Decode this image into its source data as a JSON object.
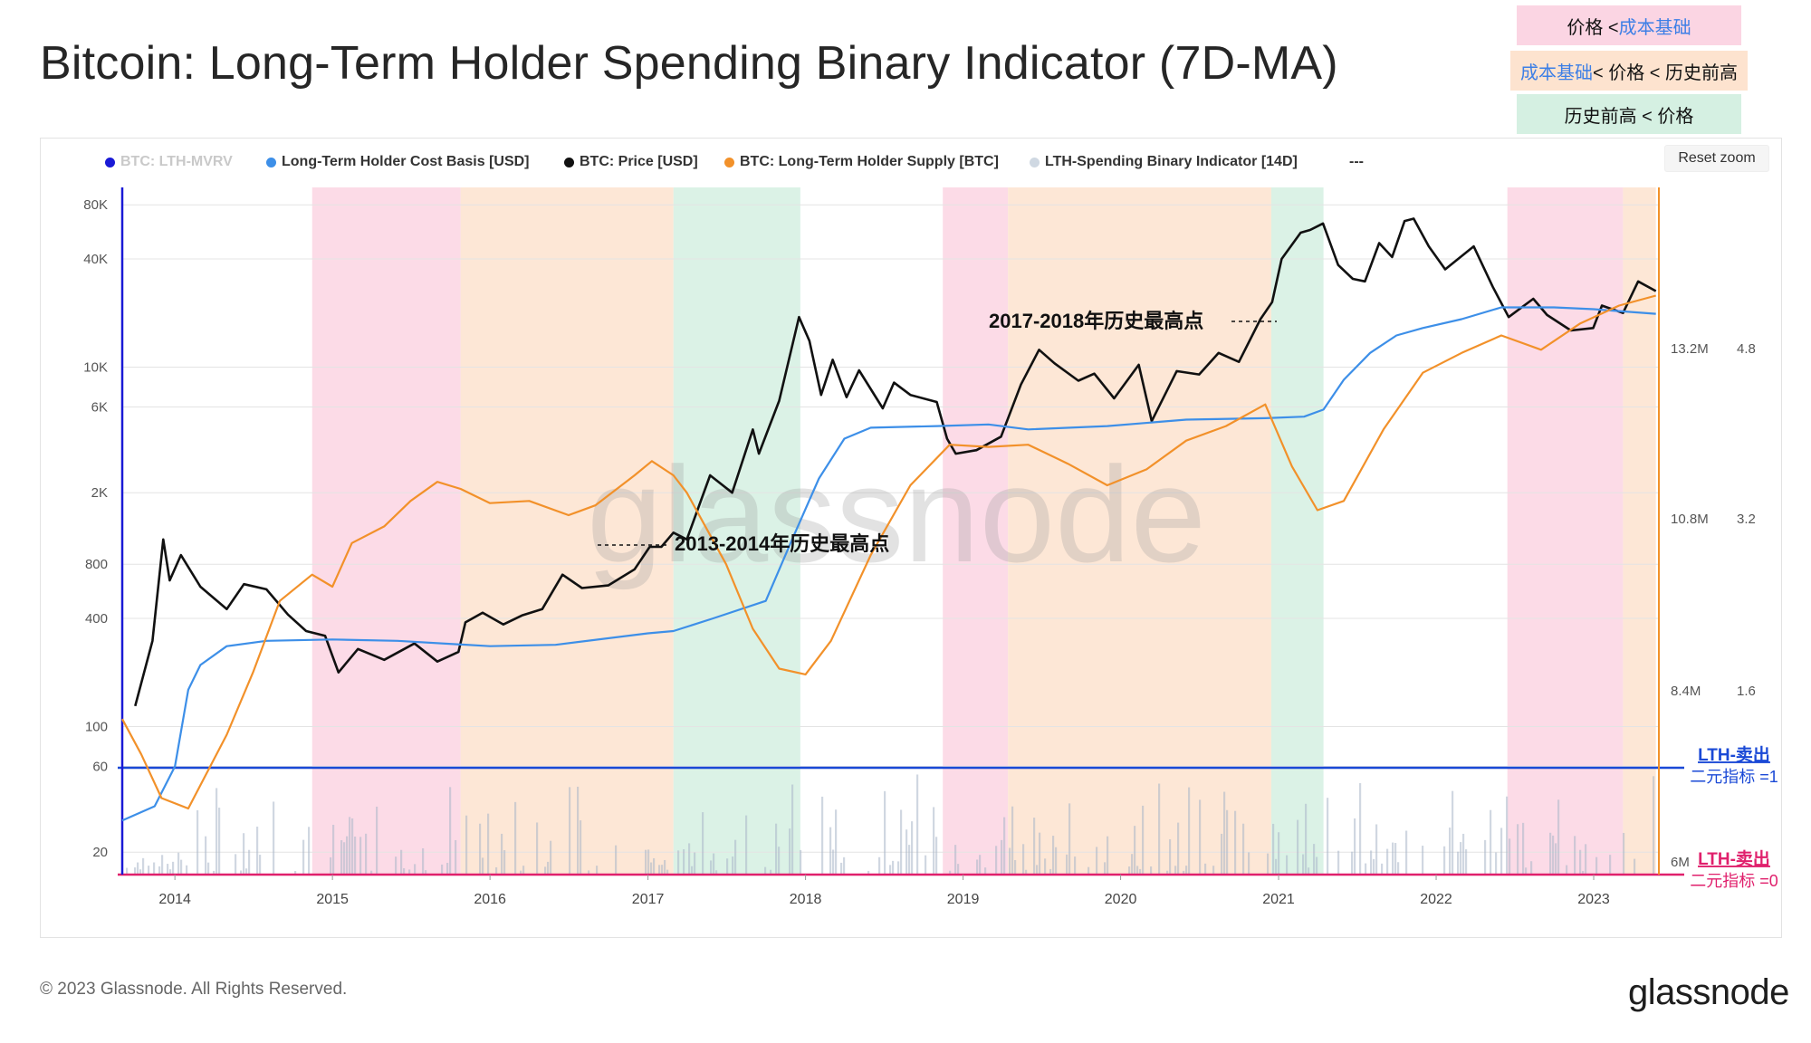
{
  "title": "Bitcoin: Long-Term Holder Spending Binary Indicator (7D-MA)",
  "key": {
    "row1": {
      "left": "价格 < ",
      "right": "成本基础"
    },
    "row2": {
      "left": "成本基础",
      "right": " < 价格 < 历史前高"
    },
    "row3": {
      "text": "历史前高 < 价格"
    }
  },
  "legend": [
    {
      "label": "BTC: LTH-MVRV",
      "color": "#1a1ad6",
      "dim": true
    },
    {
      "label": "Long-Term Holder Cost Basis [USD]",
      "color": "#3d8fe8",
      "dim": false
    },
    {
      "label": "BTC: Price [USD]",
      "color": "#111111",
      "dim": false
    },
    {
      "label": "BTC: Long-Term Holder Supply [BTC]",
      "color": "#f2912a",
      "dim": false
    },
    {
      "label": "LTH-Spending Binary Indicator [14D]",
      "color": "#cfd8e2",
      "dim": false
    },
    {
      "label": "---",
      "color": "",
      "dim": false
    }
  ],
  "reset_zoom": "Reset zoom",
  "footer": "© 2023 Glassnode. All Rights Reserved.",
  "brand": "glassnode",
  "watermark": "glassnode",
  "chart_data": {
    "type": "line",
    "x_range": [
      "2013-09-01",
      "2023-06-01"
    ],
    "x_ticks": [
      "2014",
      "2015",
      "2016",
      "2017",
      "2018",
      "2019",
      "2020",
      "2021",
      "2022",
      "2023"
    ],
    "y_left": {
      "scale": "log",
      "range": [
        15,
        100000
      ],
      "ticks": [
        "80K",
        "40K",
        "10K",
        "6K",
        "2K",
        "800",
        "400",
        "100",
        "60",
        "20"
      ],
      "unit": "USD"
    },
    "y_right_supply": {
      "ticks": [
        "13.2M",
        "10.8M",
        "8.4M",
        "6M"
      ],
      "unit": "BTC"
    },
    "y_right_mvrv": {
      "ticks": [
        "4.8",
        "3.2",
        "1.6"
      ]
    },
    "regions": [
      {
        "from": "2014-11-15",
        "to": "2015-10-25",
        "state": "价格 < 成本基础",
        "color": "#fbd5e3"
      },
      {
        "from": "2015-10-25",
        "to": "2017-03-01",
        "state": "成本基础 < 价格 < 历史前高",
        "color": "#fde3cf"
      },
      {
        "from": "2017-03-01",
        "to": "2017-12-20",
        "state": "历史前高 < 价格",
        "color": "#d5f0e2"
      },
      {
        "from": "2018-11-15",
        "to": "2019-04-15",
        "state": "价格 < 成本基础",
        "color": "#fbd5e3"
      },
      {
        "from": "2019-04-15",
        "to": "2020-12-15",
        "state": "成本基础 < 价格 < 历史前高",
        "color": "#fde3cf"
      },
      {
        "from": "2020-12-15",
        "to": "2021-04-15",
        "state": "历史前高 < 价格",
        "color": "#d5f0e2"
      },
      {
        "from": "2022-06-15",
        "to": "2023-03-10",
        "state": "价格 < 成本基础",
        "color": "#fbd5e3"
      },
      {
        "from": "2023-03-10",
        "to": "2023-05-25",
        "state": "成本基础 < 价格 < 历史前高",
        "color": "#fde3cf"
      }
    ],
    "series": [
      {
        "name": "BTC: Price [USD]",
        "color": "#111111",
        "points": [
          [
            "2013-10-01",
            130
          ],
          [
            "2013-11-10",
            300
          ],
          [
            "2013-12-05",
            1100
          ],
          [
            "2013-12-20",
            650
          ],
          [
            "2014-01-15",
            900
          ],
          [
            "2014-03-01",
            600
          ],
          [
            "2014-05-01",
            450
          ],
          [
            "2014-06-10",
            620
          ],
          [
            "2014-08-01",
            580
          ],
          [
            "2014-09-20",
            420
          ],
          [
            "2014-11-01",
            340
          ],
          [
            "2014-12-15",
            320
          ],
          [
            "2015-01-15",
            200
          ],
          [
            "2015-03-01",
            270
          ],
          [
            "2015-05-01",
            235
          ],
          [
            "2015-07-10",
            290
          ],
          [
            "2015-09-01",
            230
          ],
          [
            "2015-10-20",
            260
          ],
          [
            "2015-11-05",
            380
          ],
          [
            "2015-12-15",
            430
          ],
          [
            "2016-02-01",
            370
          ],
          [
            "2016-03-15",
            415
          ],
          [
            "2016-05-01",
            450
          ],
          [
            "2016-06-17",
            700
          ],
          [
            "2016-08-01",
            590
          ],
          [
            "2016-10-01",
            610
          ],
          [
            "2016-12-01",
            750
          ],
          [
            "2017-01-05",
            1000
          ],
          [
            "2017-02-01",
            1000
          ],
          [
            "2017-03-01",
            1200
          ],
          [
            "2017-04-01",
            1100
          ],
          [
            "2017-05-25",
            2500
          ],
          [
            "2017-07-15",
            2000
          ],
          [
            "2017-09-01",
            4500
          ],
          [
            "2017-09-15",
            3300
          ],
          [
            "2017-11-01",
            6500
          ],
          [
            "2017-12-17",
            19000
          ],
          [
            "2018-01-10",
            14000
          ],
          [
            "2018-02-06",
            7000
          ],
          [
            "2018-03-05",
            11000
          ],
          [
            "2018-04-06",
            6800
          ],
          [
            "2018-05-05",
            9600
          ],
          [
            "2018-06-29",
            5900
          ],
          [
            "2018-07-25",
            8200
          ],
          [
            "2018-09-01",
            7000
          ],
          [
            "2018-11-01",
            6400
          ],
          [
            "2018-11-25",
            4000
          ],
          [
            "2018-12-15",
            3300
          ],
          [
            "2019-02-01",
            3450
          ],
          [
            "2019-03-30",
            4100
          ],
          [
            "2019-05-15",
            8000
          ],
          [
            "2019-06-26",
            12500
          ],
          [
            "2019-08-01",
            10500
          ],
          [
            "2019-09-25",
            8400
          ],
          [
            "2019-11-01",
            9200
          ],
          [
            "2019-12-17",
            6700
          ],
          [
            "2020-02-12",
            10300
          ],
          [
            "2020-03-13",
            5000
          ],
          [
            "2020-05-10",
            9500
          ],
          [
            "2020-07-01",
            9100
          ],
          [
            "2020-08-15",
            12000
          ],
          [
            "2020-10-01",
            10700
          ],
          [
            "2020-11-20",
            18500
          ],
          [
            "2020-12-17",
            23000
          ],
          [
            "2021-01-08",
            40000
          ],
          [
            "2021-02-21",
            56000
          ],
          [
            "2021-03-15",
            58000
          ],
          [
            "2021-04-14",
            63000
          ],
          [
            "2021-05-19",
            37000
          ],
          [
            "2021-06-22",
            31000
          ],
          [
            "2021-07-20",
            30000
          ],
          [
            "2021-08-22",
            49000
          ],
          [
            "2021-09-21",
            41000
          ],
          [
            "2021-10-20",
            65000
          ],
          [
            "2021-11-10",
            67000
          ],
          [
            "2021-12-15",
            47000
          ],
          [
            "2022-01-22",
            35000
          ],
          [
            "2022-03-29",
            47000
          ],
          [
            "2022-05-12",
            28000
          ],
          [
            "2022-06-18",
            19000
          ],
          [
            "2022-08-14",
            24000
          ],
          [
            "2022-09-15",
            19500
          ],
          [
            "2022-11-09",
            16000
          ],
          [
            "2022-12-31",
            16500
          ],
          [
            "2023-01-20",
            22000
          ],
          [
            "2023-03-10",
            20000
          ],
          [
            "2023-04-14",
            30000
          ],
          [
            "2023-05-25",
            26500
          ]
        ]
      },
      {
        "name": "Long-Term Holder Cost Basis [USD]",
        "color": "#3d8fe8",
        "points": [
          [
            "2013-09-01",
            30
          ],
          [
            "2013-11-15",
            36
          ],
          [
            "2014-01-01",
            60
          ],
          [
            "2014-02-01",
            160
          ],
          [
            "2014-03-01",
            220
          ],
          [
            "2014-05-01",
            280
          ],
          [
            "2014-08-01",
            300
          ],
          [
            "2015-01-01",
            305
          ],
          [
            "2015-06-01",
            300
          ],
          [
            "2016-01-01",
            280
          ],
          [
            "2016-06-01",
            285
          ],
          [
            "2017-01-01",
            330
          ],
          [
            "2017-03-01",
            340
          ],
          [
            "2017-06-01",
            400
          ],
          [
            "2017-10-01",
            500
          ],
          [
            "2017-12-01",
            1100
          ],
          [
            "2018-02-01",
            2400
          ],
          [
            "2018-04-01",
            4000
          ],
          [
            "2018-06-01",
            4600
          ],
          [
            "2018-11-01",
            4700
          ],
          [
            "2019-03-01",
            4800
          ],
          [
            "2019-06-01",
            4500
          ],
          [
            "2019-12-01",
            4700
          ],
          [
            "2020-06-01",
            5100
          ],
          [
            "2020-12-01",
            5200
          ],
          [
            "2021-03-01",
            5300
          ],
          [
            "2021-04-15",
            5800
          ],
          [
            "2021-06-01",
            8500
          ],
          [
            "2021-08-01",
            12000
          ],
          [
            "2021-10-01",
            15000
          ],
          [
            "2021-12-01",
            16500
          ],
          [
            "2022-03-01",
            18500
          ],
          [
            "2022-06-01",
            21500
          ],
          [
            "2022-10-01",
            21500
          ],
          [
            "2023-01-01",
            21000
          ],
          [
            "2023-03-01",
            20500
          ],
          [
            "2023-05-25",
            19800
          ]
        ]
      },
      {
        "name": "BTC: Long-Term Holder Supply [BTC]",
        "color": "#f2912a",
        "points": [
          [
            "2013-09-01",
            110
          ],
          [
            "2013-10-15",
            70
          ],
          [
            "2013-12-01",
            40
          ],
          [
            "2014-02-01",
            35
          ],
          [
            "2014-05-01",
            90
          ],
          [
            "2014-07-01",
            200
          ],
          [
            "2014-09-01",
            500
          ],
          [
            "2014-11-15",
            700
          ],
          [
            "2015-01-01",
            600
          ],
          [
            "2015-02-15",
            1050
          ],
          [
            "2015-05-01",
            1300
          ],
          [
            "2015-07-01",
            1800
          ],
          [
            "2015-09-01",
            2300
          ],
          [
            "2015-10-25",
            2100
          ],
          [
            "2016-01-01",
            1750
          ],
          [
            "2016-04-01",
            1800
          ],
          [
            "2016-07-01",
            1500
          ],
          [
            "2016-09-01",
            1700
          ],
          [
            "2016-12-01",
            2500
          ],
          [
            "2017-01-10",
            3000
          ],
          [
            "2017-03-01",
            2500
          ],
          [
            "2017-04-01",
            2000
          ],
          [
            "2017-07-01",
            800
          ],
          [
            "2017-09-01",
            350
          ],
          [
            "2017-11-01",
            210
          ],
          [
            "2018-01-01",
            195
          ],
          [
            "2018-03-01",
            300
          ],
          [
            "2018-06-01",
            900
          ],
          [
            "2018-09-01",
            2200
          ],
          [
            "2018-12-01",
            3700
          ],
          [
            "2019-03-01",
            3600
          ],
          [
            "2019-06-01",
            3700
          ],
          [
            "2019-09-01",
            2900
          ],
          [
            "2019-12-01",
            2200
          ],
          [
            "2020-03-01",
            2700
          ],
          [
            "2020-06-01",
            3900
          ],
          [
            "2020-09-01",
            4700
          ],
          [
            "2020-12-01",
            6200
          ],
          [
            "2021-02-01",
            2800
          ],
          [
            "2021-04-01",
            1600
          ],
          [
            "2021-06-01",
            1800
          ],
          [
            "2021-09-01",
            4500
          ],
          [
            "2021-12-01",
            9300
          ],
          [
            "2022-03-01",
            12000
          ],
          [
            "2022-06-01",
            15000
          ],
          [
            "2022-09-01",
            12500
          ],
          [
            "2022-12-01",
            17500
          ],
          [
            "2023-03-01",
            22000
          ],
          [
            "2023-05-25",
            25000
          ]
        ]
      }
    ],
    "annotations": [
      {
        "text": "2013-2014年历史最高点",
        "x": "2017-03-01",
        "y": 1100
      },
      {
        "text": "2017-2018年历史最高点",
        "x": "2020-10-15",
        "y": 19000
      }
    ],
    "right_labels": [
      {
        "line1": "LTH-卖出",
        "line2": "二元指标 =1",
        "color": "#1a49d6"
      },
      {
        "line1": "LTH-卖出",
        "line2": "二元指标 =0",
        "color": "#e0206c"
      }
    ]
  }
}
